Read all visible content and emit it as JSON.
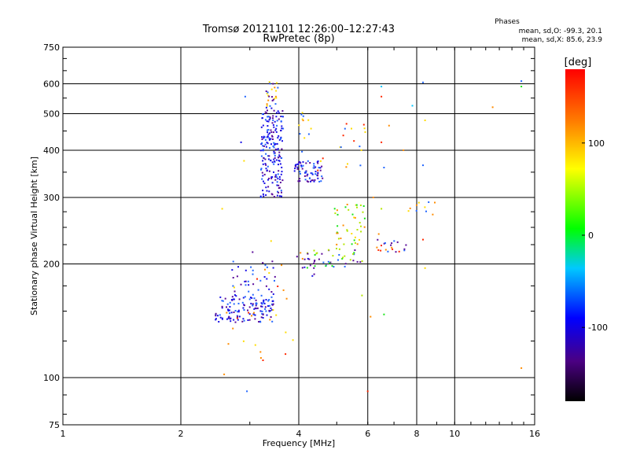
{
  "chart_data": {
    "type": "scatter",
    "title": "Tromsø 20121101 12:26:00–12:27:43",
    "subtitle": "RwPretec (8p)",
    "xlabel": "Frequency [MHz]",
    "ylabel": "Stationary phase Virtual Height [km]",
    "x_scale": "log2",
    "y_scale": "log",
    "xlim": [
      1,
      16
    ],
    "ylim": [
      75,
      750
    ],
    "x_ticks": [
      1,
      2,
      4,
      6,
      8,
      10,
      16
    ],
    "x_tick_labels": [
      "1",
      "2",
      "4",
      "6",
      "8",
      "10",
      "16"
    ],
    "y_ticks": [
      75,
      100,
      200,
      300,
      400,
      500,
      600,
      750
    ],
    "y_tick_labels": [
      "75",
      "100",
      "200",
      "300",
      "400",
      "500",
      "600",
      "750"
    ],
    "grid": true,
    "stats": {
      "heading": "Phases",
      "line1": "mean, sd,O: -99.3, 20.1",
      "line2": "mean, sd,X:  85.6, 23.9"
    },
    "colorbar": {
      "label": "[deg]",
      "range": [
        -180,
        180
      ],
      "ticks": [
        -100,
        0,
        100
      ],
      "tick_labels": [
        "-100",
        "0",
        "100"
      ]
    },
    "cluster_color_keys": {
      "dkblue": "#1a10e6",
      "blue": "#2266ff",
      "purple": "#5a0a9a",
      "cyan": "#00c8ff",
      "green": "#19e619",
      "yellowgreen": "#b4e600",
      "yellow": "#ffdc00",
      "orange": "#ff8c00",
      "red": "#ff2800"
    },
    "clusters": [
      {
        "fmin": 2.45,
        "fmax": 3.45,
        "hmin": 140,
        "hmax": 165,
        "n": 130,
        "colors": [
          "dkblue",
          "blue",
          "purple",
          "dkblue"
        ]
      },
      {
        "fmin": 2.7,
        "fmax": 3.5,
        "hmin": 160,
        "hmax": 205,
        "n": 40,
        "colors": [
          "dkblue",
          "blue",
          "purple"
        ]
      },
      {
        "fmin": 3.2,
        "fmax": 3.65,
        "hmin": 300,
        "hmax": 520,
        "n": 200,
        "colors": [
          "dkblue",
          "blue",
          "purple",
          "dkblue"
        ]
      },
      {
        "fmin": 3.3,
        "fmax": 3.55,
        "hmin": 520,
        "hmax": 610,
        "n": 25,
        "colors": [
          "yellow",
          "orange",
          "blue",
          "purple"
        ]
      },
      {
        "fmin": 3.9,
        "fmax": 4.6,
        "hmin": 330,
        "hmax": 375,
        "n": 70,
        "colors": [
          "dkblue",
          "blue",
          "purple"
        ]
      },
      {
        "fmin": 4.0,
        "fmax": 4.3,
        "hmin": 395,
        "hmax": 510,
        "n": 12,
        "colors": [
          "blue",
          "orange",
          "yellow"
        ]
      },
      {
        "fmin": 4.2,
        "fmax": 5.9,
        "hmin": 195,
        "hmax": 220,
        "n": 40,
        "colors": [
          "green",
          "yellowgreen",
          "blue",
          "purple"
        ]
      },
      {
        "fmin": 4.9,
        "fmax": 5.9,
        "hmin": 225,
        "hmax": 290,
        "n": 40,
        "colors": [
          "yellowgreen",
          "green",
          "yellow",
          "orange"
        ]
      },
      {
        "fmin": 3.9,
        "fmax": 4.4,
        "hmin": 185,
        "hmax": 215,
        "n": 15,
        "colors": [
          "purple",
          "dkblue",
          "orange"
        ]
      },
      {
        "fmin": 6.3,
        "fmax": 7.6,
        "hmin": 215,
        "hmax": 232,
        "n": 20,
        "colors": [
          "orange",
          "red",
          "purple",
          "blue"
        ]
      },
      {
        "fmin": 7.6,
        "fmax": 9.0,
        "hmin": 270,
        "hmax": 292,
        "n": 10,
        "colors": [
          "orange",
          "yellow",
          "blue"
        ]
      },
      {
        "fmin": 4.4,
        "fmax": 6.1,
        "hmin": 340,
        "hmax": 480,
        "n": 18,
        "colors": [
          "orange",
          "yellow",
          "blue",
          "red"
        ]
      },
      {
        "fmin": 2.6,
        "fmax": 3.9,
        "hmin": 110,
        "hmax": 200,
        "n": 25,
        "colors": [
          "orange",
          "yellow",
          "red"
        ]
      }
    ],
    "scatter_points": [
      {
        "x": 2.92,
        "y": 555,
        "c": "blue"
      },
      {
        "x": 2.85,
        "y": 420,
        "c": "dkblue"
      },
      {
        "x": 2.9,
        "y": 375,
        "c": "yellow"
      },
      {
        "x": 2.55,
        "y": 280,
        "c": "yellow"
      },
      {
        "x": 2.95,
        "y": 92,
        "c": "blue"
      },
      {
        "x": 2.58,
        "y": 102,
        "c": "orange"
      },
      {
        "x": 6.0,
        "y": 92,
        "c": "red"
      },
      {
        "x": 6.5,
        "y": 590,
        "c": "cyan"
      },
      {
        "x": 6.5,
        "y": 555,
        "c": "red"
      },
      {
        "x": 8.3,
        "y": 605,
        "c": "blue"
      },
      {
        "x": 7.8,
        "y": 525,
        "c": "cyan"
      },
      {
        "x": 8.4,
        "y": 480,
        "c": "yellow"
      },
      {
        "x": 8.3,
        "y": 365,
        "c": "blue"
      },
      {
        "x": 6.6,
        "y": 360,
        "c": "blue"
      },
      {
        "x": 6.8,
        "y": 465,
        "c": "orange"
      },
      {
        "x": 6.5,
        "y": 420,
        "c": "red"
      },
      {
        "x": 7.4,
        "y": 400,
        "c": "orange"
      },
      {
        "x": 12.5,
        "y": 520,
        "c": "orange"
      },
      {
        "x": 14.8,
        "y": 610,
        "c": "blue"
      },
      {
        "x": 14.8,
        "y": 590,
        "c": "green"
      },
      {
        "x": 14.8,
        "y": 106,
        "c": "orange"
      },
      {
        "x": 6.1,
        "y": 145,
        "c": "orange"
      },
      {
        "x": 6.6,
        "y": 147,
        "c": "green"
      },
      {
        "x": 5.8,
        "y": 165,
        "c": "yellowgreen"
      },
      {
        "x": 8.3,
        "y": 232,
        "c": "red"
      },
      {
        "x": 8.4,
        "y": 195,
        "c": "yellow"
      },
      {
        "x": 6.4,
        "y": 240,
        "c": "orange"
      },
      {
        "x": 6.5,
        "y": 280,
        "c": "yellowgreen"
      },
      {
        "x": 6.2,
        "y": 300,
        "c": "orange"
      },
      {
        "x": 3.05,
        "y": 215,
        "c": "purple"
      },
      {
        "x": 3.1,
        "y": 122,
        "c": "yellow"
      },
      {
        "x": 3.4,
        "y": 230,
        "c": "yellow"
      }
    ]
  }
}
